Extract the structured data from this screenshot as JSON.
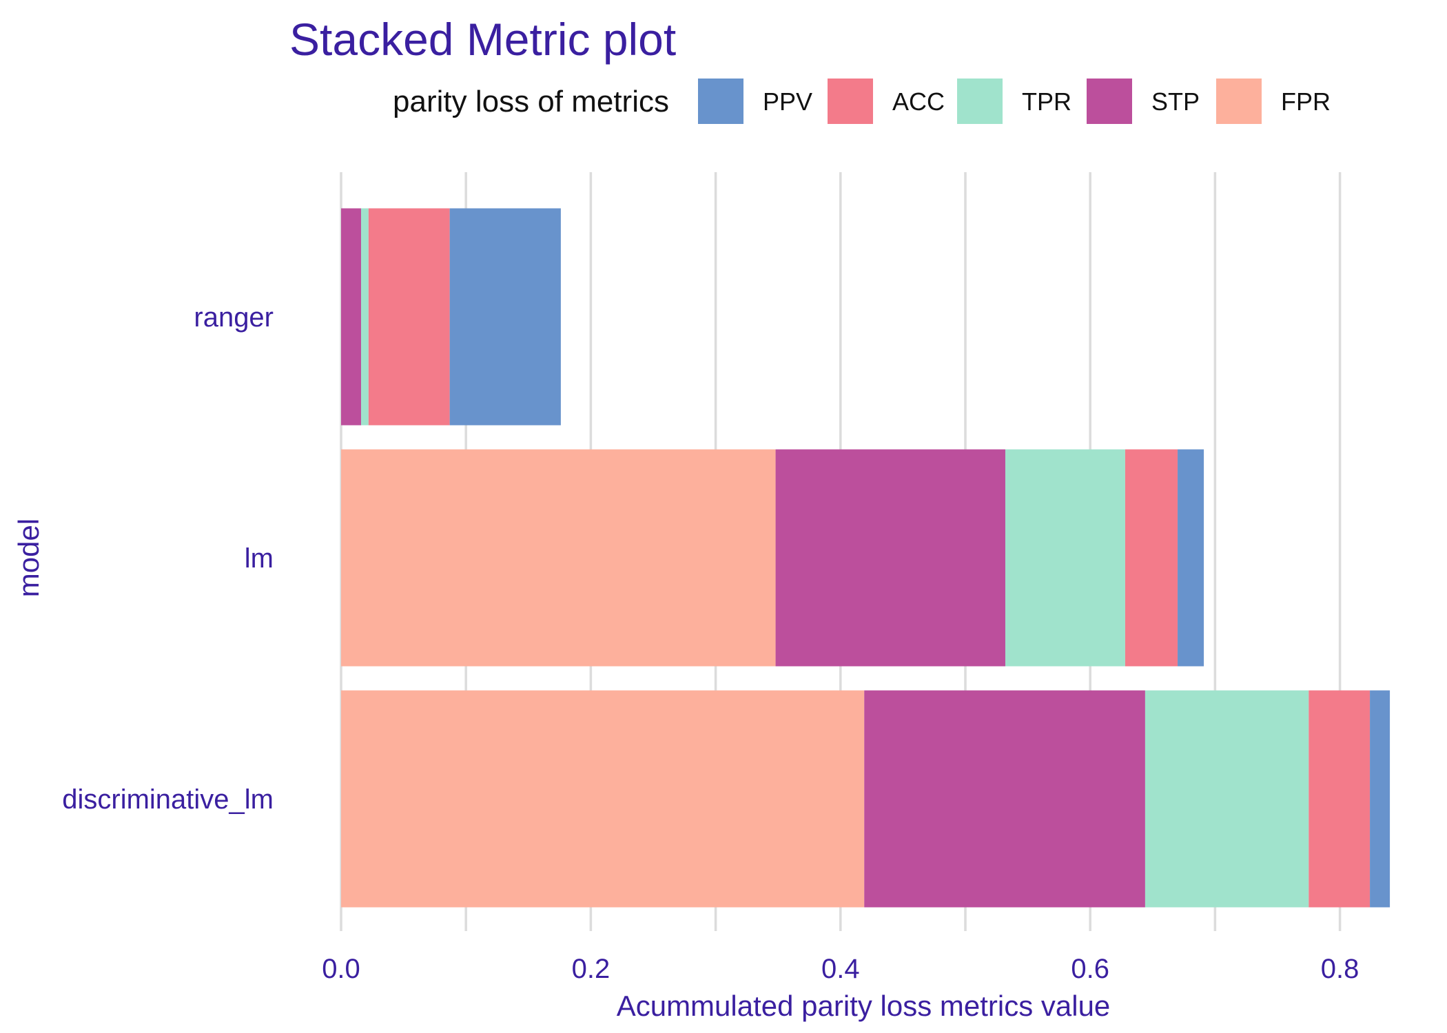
{
  "chart_data": {
    "type": "bar",
    "orientation": "horizontal",
    "stacked": true,
    "title": "Stacked Metric plot",
    "xlabel": "Acummulated parity loss metrics value",
    "ylabel": "model",
    "xlim": [
      0,
      0.84
    ],
    "xticks": [
      "0.0",
      "0.2",
      "0.4",
      "0.6",
      "0.8"
    ],
    "grid": true,
    "legend": {
      "title": "parity loss of metrics",
      "position": "top",
      "entries": [
        "PPV",
        "ACC",
        "TPR",
        "STP",
        "FPR"
      ]
    },
    "categories": [
      "ranger",
      "lm",
      "discriminative_lm"
    ],
    "stack_order": [
      "FPR",
      "STP",
      "TPR",
      "ACC",
      "PPV"
    ],
    "series": [
      {
        "name": "FPR",
        "color": "#fdb09c",
        "values": [
          0.0,
          0.348,
          0.419
        ]
      },
      {
        "name": "STP",
        "color": "#bc4f9c",
        "values": [
          0.016,
          0.184,
          0.225
        ]
      },
      {
        "name": "TPR",
        "color": "#a0e3cc",
        "values": [
          0.006,
          0.096,
          0.131
        ]
      },
      {
        "name": "ACC",
        "color": "#f37b8a",
        "values": [
          0.065,
          0.042,
          0.049
        ]
      },
      {
        "name": "PPV",
        "color": "#6893cc",
        "values": [
          0.089,
          0.021,
          0.016
        ]
      }
    ]
  }
}
